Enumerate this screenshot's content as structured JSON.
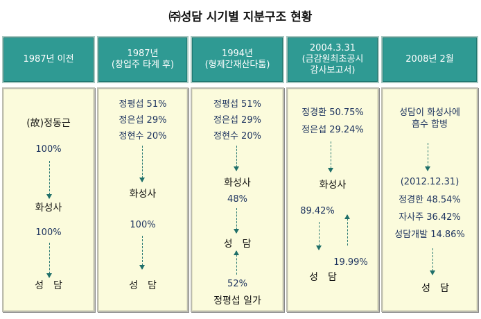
{
  "title": "㈜성담 시기별 지분구조 현황",
  "headers": [
    "1987년 이전",
    "1987년\n(창업주 타계 후)",
    "1994년\n(형제간재산다툼)",
    "2004.3.31\n(금감원최초공시\n감사보고서)",
    "2008년 2월"
  ],
  "col1": {
    "owner": "(故)정동근",
    "pct1": "100%",
    "mid": "화성사",
    "pct2": "100%",
    "bottom": "성　담"
  },
  "col2": {
    "lines": [
      "정평섭 51%",
      "정은섭 29%",
      "정현수 20%"
    ],
    "mid": "화성사",
    "pct": "100%",
    "bottom": "성　담"
  },
  "col3": {
    "lines": [
      "정평섭 51%",
      "정은섭 29%",
      "정현수 20%"
    ],
    "mid": "화성사",
    "pct1": "48%",
    "bottom": "성　담",
    "pct2": "52%",
    "family": "정평섭 일가"
  },
  "col4": {
    "lines": [
      "정경환 50.75%",
      "정은섭 29.24%"
    ],
    "mid": "화성사",
    "pct_down": "89.42%",
    "pct_up": "19.99%",
    "bottom": "성　담"
  },
  "col5": {
    "lines": [
      "성담이 화성사에",
      "흡수 합병"
    ],
    "date": "(2012.12.31)",
    "holders": [
      "정경한 48.54%",
      "자사주 36.42%",
      "성담개발 14.86%"
    ],
    "bottom": "성　담"
  }
}
